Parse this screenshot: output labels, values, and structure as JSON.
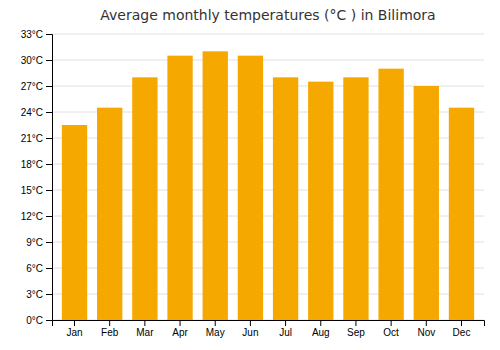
{
  "chart_data": {
    "type": "bar",
    "title": "Average monthly temperatures (°C ) in Bilimora",
    "categories": [
      "Jan",
      "Feb",
      "Mar",
      "Apr",
      "May",
      "Jun",
      "Jul",
      "Aug",
      "Sep",
      "Oct",
      "Nov",
      "Dec"
    ],
    "values": [
      22.5,
      24.5,
      28.0,
      30.5,
      31.0,
      30.5,
      28.0,
      27.5,
      28.0,
      29.0,
      27.0,
      24.5
    ],
    "color": "#F5A800",
    "ylim": [
      0,
      33
    ],
    "yticks": [
      {
        "value": 0,
        "label": "0°C"
      },
      {
        "value": 3,
        "label": "3°C"
      },
      {
        "value": 6,
        "label": "6°C"
      },
      {
        "value": 9,
        "label": "9°C"
      },
      {
        "value": 12,
        "label": "12°C"
      },
      {
        "value": 15,
        "label": "15°C"
      },
      {
        "value": 18,
        "label": "18°C"
      },
      {
        "value": 21,
        "label": "21°C"
      },
      {
        "value": 24,
        "label": "24°C"
      },
      {
        "value": 27,
        "label": "27°C"
      },
      {
        "value": 30,
        "label": "30°C"
      },
      {
        "value": 33,
        "label": "33°C"
      }
    ],
    "grid": true
  }
}
